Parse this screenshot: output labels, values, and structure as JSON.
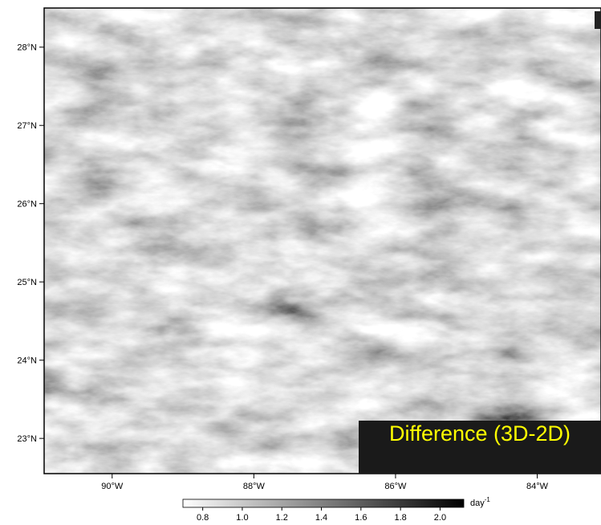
{
  "map": {
    "lat_range": [
      22.55,
      28.5
    ],
    "lon_range": [
      -90.96,
      -83.1
    ],
    "lat_ticks": [
      {
        "value": 28,
        "label": "28°N"
      },
      {
        "value": 27,
        "label": "27°N"
      },
      {
        "value": 26,
        "label": "26°N"
      },
      {
        "value": 25,
        "label": "25°N"
      },
      {
        "value": 24,
        "label": "24°N"
      },
      {
        "value": 23,
        "label": "23°N"
      }
    ],
    "lon_ticks": [
      {
        "value": -90,
        "label": "90°W"
      },
      {
        "value": -88,
        "label": "88°W"
      },
      {
        "value": -86,
        "label": "86°W"
      },
      {
        "value": -84,
        "label": "84°W"
      }
    ],
    "annotation": "Difference (3D-2D)"
  },
  "colorbar": {
    "range": [
      0.7,
      2.12
    ],
    "ticks": [
      0.8,
      {
        "value": 1.0,
        "label": "1.0"
      },
      1.2,
      1.4,
      1.6,
      1.8,
      {
        "value": 2.0,
        "label": "2.0"
      }
    ],
    "colors": [
      "#ffffff",
      "#000000"
    ],
    "unit": "day",
    "unit_exponent": "-1"
  }
}
